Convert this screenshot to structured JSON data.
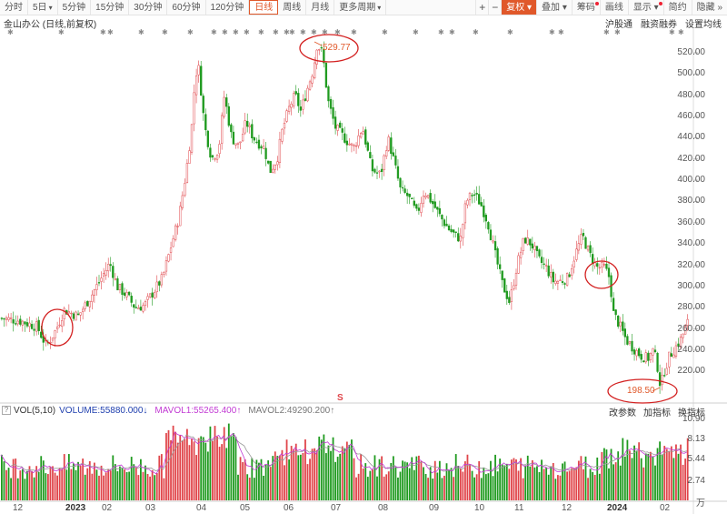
{
  "toolbar": {
    "periods": [
      {
        "label": "分时",
        "active": false
      },
      {
        "label": "5日",
        "active": false,
        "dropdown": true
      },
      {
        "label": "5分钟",
        "active": false
      },
      {
        "label": "15分钟",
        "active": false
      },
      {
        "label": "30分钟",
        "active": false
      },
      {
        "label": "60分钟",
        "active": false
      },
      {
        "label": "120分钟",
        "active": false
      },
      {
        "label": "日线",
        "active": true
      },
      {
        "label": "周线",
        "active": false
      },
      {
        "label": "月线",
        "active": false
      },
      {
        "label": "更多周期",
        "active": false,
        "dropdown": true
      }
    ],
    "zoom_in": "+",
    "zoom_out": "−",
    "fuquan": "复权",
    "tools": [
      "叠加",
      "筹码",
      "画线",
      "显示",
      "简约",
      "隐藏"
    ]
  },
  "stock_name": "金山办公 (日线,前复权)",
  "links": [
    "沪股通",
    "融资融券",
    "设置均线"
  ],
  "price_axis": [
    "520.00",
    "500.00",
    "480.00",
    "460.00",
    "440.00",
    "420.00",
    "400.00",
    "380.00",
    "360.00",
    "340.00",
    "320.00",
    "300.00",
    "280.00",
    "260.00",
    "240.00",
    "220.00"
  ],
  "annotations": {
    "high": "529.77",
    "low": "198.50",
    "marker_s": "S"
  },
  "volume": {
    "qmark": "?",
    "title": "VOL(5,10)",
    "vol_value": "VOLUME:55880.000",
    "vol_arrow": "↓",
    "ma1": "MAVOL1:55265.400",
    "ma1_arrow": "↑",
    "ma2": "MAVOL2:49290.200",
    "ma2_arrow": "↑",
    "links": [
      "改参数",
      "加指标",
      "换指标"
    ],
    "axis": [
      "10.90",
      "8.13",
      "5.44",
      "2.74"
    ],
    "unit": "万"
  },
  "x_axis": [
    {
      "label": "12",
      "year": false
    },
    {
      "label": "2023",
      "year": true
    },
    {
      "label": "02",
      "year": false
    },
    {
      "label": "03",
      "year": false
    },
    {
      "label": "04",
      "year": false
    },
    {
      "label": "05",
      "year": false
    },
    {
      "label": "06",
      "year": false
    },
    {
      "label": "07",
      "year": false
    },
    {
      "label": "08",
      "year": false
    },
    {
      "label": "09",
      "year": false
    },
    {
      "label": "10",
      "year": false
    },
    {
      "label": "11",
      "year": false
    },
    {
      "label": "12",
      "year": false
    },
    {
      "label": "2024",
      "year": true
    },
    {
      "label": "02",
      "year": false
    }
  ],
  "colors": {
    "up": "#e0454a",
    "down": "#1f9a1f",
    "accent": "#e0582a",
    "circle": "#d32020",
    "ma1": "#c23bd4",
    "ma2": "#999999"
  },
  "price_path": [
    [
      0,
      270
    ],
    [
      20,
      268
    ],
    [
      40,
      262
    ],
    [
      50,
      244
    ],
    [
      60,
      258
    ],
    [
      70,
      278
    ],
    [
      85,
      272
    ],
    [
      100,
      292
    ],
    [
      112,
      310
    ],
    [
      120,
      322
    ],
    [
      128,
      300
    ],
    [
      138,
      292
    ],
    [
      148,
      280
    ],
    [
      158,
      282
    ],
    [
      168,
      295
    ],
    [
      178,
      308
    ],
    [
      188,
      340
    ],
    [
      196,
      365
    ],
    [
      204,
      408
    ],
    [
      210,
      450
    ],
    [
      214,
      500
    ],
    [
      218,
      505
    ],
    [
      224,
      452
    ],
    [
      232,
      420
    ],
    [
      240,
      430
    ],
    [
      246,
      480
    ],
    [
      254,
      440
    ],
    [
      262,
      432
    ],
    [
      270,
      455
    ],
    [
      278,
      440
    ],
    [
      290,
      430
    ],
    [
      296,
      408
    ],
    [
      304,
      420
    ],
    [
      310,
      448
    ],
    [
      318,
      470
    ],
    [
      324,
      480
    ],
    [
      330,
      465
    ],
    [
      338,
      488
    ],
    [
      344,
      505
    ],
    [
      348,
      528
    ],
    [
      354,
      520
    ],
    [
      360,
      475
    ],
    [
      368,
      450
    ],
    [
      378,
      440
    ],
    [
      388,
      430
    ],
    [
      398,
      450
    ],
    [
      408,
      410
    ],
    [
      418,
      405
    ],
    [
      426,
      440
    ],
    [
      432,
      420
    ],
    [
      440,
      390
    ],
    [
      448,
      385
    ],
    [
      458,
      368
    ],
    [
      466,
      390
    ],
    [
      474,
      380
    ],
    [
      484,
      365
    ],
    [
      492,
      355
    ],
    [
      500,
      348
    ],
    [
      506,
      345
    ],
    [
      512,
      380
    ],
    [
      520,
      388
    ],
    [
      528,
      378
    ],
    [
      536,
      360
    ],
    [
      544,
      330
    ],
    [
      552,
      302
    ],
    [
      560,
      285
    ],
    [
      568,
      320
    ],
    [
      576,
      345
    ],
    [
      584,
      340
    ],
    [
      592,
      325
    ],
    [
      600,
      318
    ],
    [
      608,
      305
    ],
    [
      616,
      305
    ],
    [
      624,
      308
    ],
    [
      632,
      330
    ],
    [
      640,
      348
    ],
    [
      648,
      330
    ],
    [
      656,
      318
    ],
    [
      664,
      318
    ],
    [
      670,
      308
    ],
    [
      674,
      275
    ],
    [
      680,
      265
    ],
    [
      688,
      250
    ],
    [
      696,
      242
    ],
    [
      704,
      235
    ],
    [
      712,
      232
    ],
    [
      718,
      240
    ],
    [
      722,
      228
    ],
    [
      726,
      205
    ],
    [
      730,
      220
    ],
    [
      736,
      235
    ],
    [
      742,
      242
    ],
    [
      748,
      250
    ],
    [
      754,
      262
    ],
    [
      758,
      270
    ]
  ]
}
